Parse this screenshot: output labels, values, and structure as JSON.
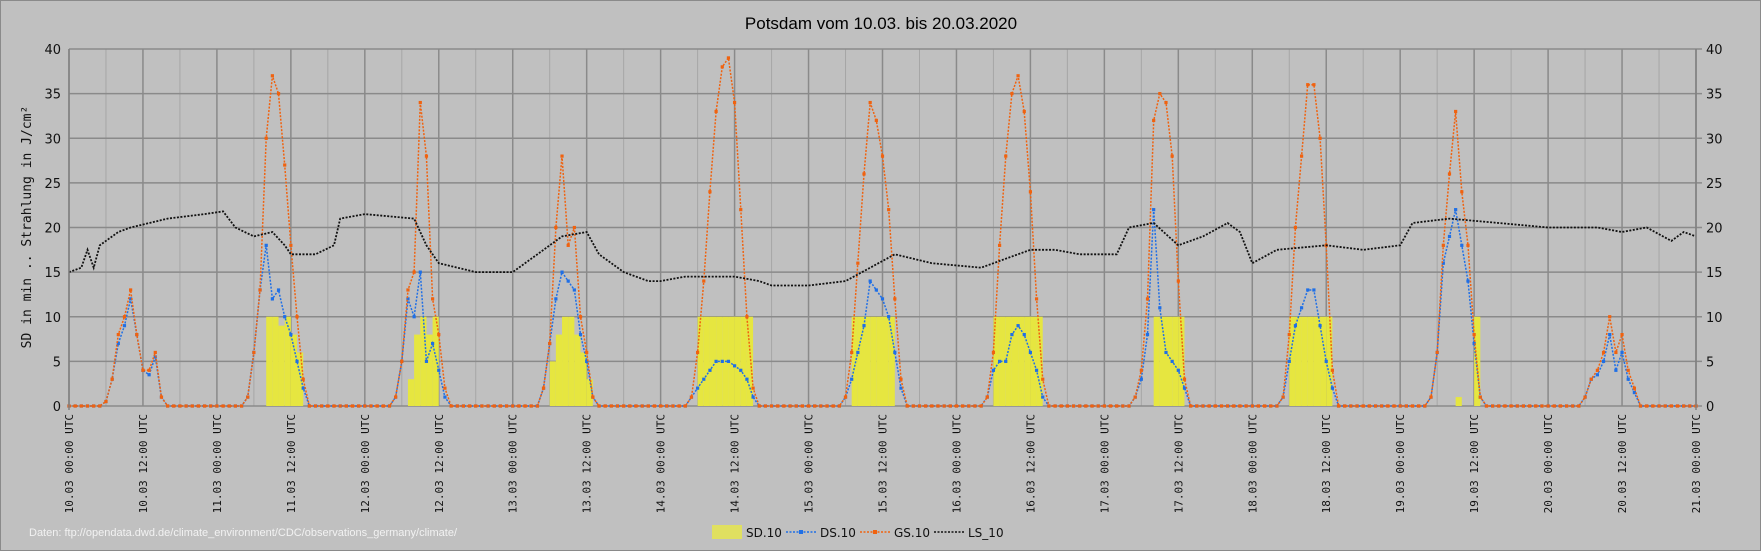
{
  "chart_data": {
    "type": "line",
    "title": "Potsdam vom 10.03. bis 20.03.2020",
    "ylabel": "SD in min .. Strahlung in J/cm²",
    "ylim": [
      0,
      40
    ],
    "y_ticks": [
      "0",
      "5",
      "10",
      "15",
      "20",
      "25",
      "30",
      "35",
      "40"
    ],
    "x_unit": "hours since 10.03 00:00 UTC",
    "xlim": [
      0,
      264
    ],
    "x_tick_labels": [
      "10.03  00:00 UTC",
      "10.03  12:00 UTC",
      "11.03  00:00 UTC",
      "11.03  12:00 UTC",
      "12.03  00:00 UTC",
      "12.03  12:00 UTC",
      "13.03  00:00 UTC",
      "13.03  12:00 UTC",
      "14.03  00:00 UTC",
      "14.03  12:00 UTC",
      "15.03  00:00 UTC",
      "15.03  12:00 UTC",
      "16.03  00:00 UTC",
      "16.03  12:00 UTC",
      "17.03  00:00 UTC",
      "17.03  12:00 UTC",
      "18.03  00:00 UTC",
      "18.03  12:00 UTC",
      "19.03  00:00 UTC",
      "19.03  12:00 UTC",
      "20.03  00:00 UTC",
      "20.03  12:00 UTC",
      "21.03  00:00 UTC"
    ],
    "grid": true,
    "legend_position": "bottom",
    "source_note": "Daten: ftp://opendata.dwd.de/climate_environment/CDC/observations_germany/climate/",
    "series": [
      {
        "name": "SD.10",
        "kind": "bar",
        "color": "#e6e640",
        "hourly_by_day": [
          [
            0,
            0,
            0,
            0,
            0,
            0,
            0,
            0,
            0,
            0,
            0,
            0,
            0,
            0,
            0,
            0,
            0,
            0,
            0,
            0,
            0,
            0,
            0,
            0
          ],
          [
            0,
            0,
            0,
            0,
            0,
            0,
            0,
            0,
            10,
            10,
            9,
            10,
            8,
            6,
            0,
            0,
            0,
            0,
            0,
            0,
            0,
            0,
            0,
            0
          ],
          [
            0,
            0,
            0,
            0,
            0,
            0,
            0,
            3,
            8,
            10,
            8,
            10,
            0,
            0,
            0,
            0,
            0,
            0,
            0,
            0,
            0,
            0,
            0,
            0
          ],
          [
            0,
            0,
            0,
            0,
            0,
            0,
            5,
            8,
            10,
            10,
            8,
            6,
            3,
            0,
            0,
            0,
            0,
            0,
            0,
            0,
            0,
            0,
            0,
            0
          ],
          [
            0,
            0,
            0,
            0,
            0,
            0,
            10,
            10,
            10,
            10,
            10,
            10,
            10,
            10,
            10,
            0,
            0,
            0,
            0,
            0,
            0,
            0,
            0,
            0
          ],
          [
            0,
            0,
            0,
            0,
            0,
            0,
            0,
            10,
            10,
            10,
            10,
            10,
            10,
            10,
            0,
            0,
            0,
            0,
            0,
            0,
            0,
            0,
            0,
            0
          ],
          [
            0,
            0,
            0,
            0,
            0,
            0,
            10,
            10,
            10,
            10,
            10,
            10,
            10,
            10,
            0,
            0,
            0,
            0,
            0,
            0,
            0,
            0,
            0,
            0
          ],
          [
            0,
            0,
            0,
            0,
            0,
            0,
            0,
            0,
            10,
            10,
            10,
            10,
            10,
            0,
            0,
            0,
            0,
            0,
            0,
            0,
            0,
            0,
            0,
            0
          ],
          [
            0,
            0,
            0,
            0,
            0,
            0,
            10,
            10,
            10,
            10,
            10,
            10,
            10,
            0,
            0,
            0,
            0,
            0,
            0,
            0,
            0,
            0,
            0,
            0
          ],
          [
            0,
            0,
            0,
            0,
            0,
            0,
            0,
            0,
            0,
            1,
            0,
            0,
            10,
            0,
            0,
            0,
            0,
            0,
            0,
            0,
            0,
            0,
            0,
            0
          ],
          [
            0,
            0,
            0,
            0,
            0,
            0,
            0,
            0,
            0,
            0,
            0,
            0,
            0,
            0,
            0,
            0,
            0,
            0,
            0,
            0,
            0,
            0,
            0,
            0
          ]
        ]
      },
      {
        "name": "DS.10",
        "kind": "line",
        "color": "#1f6fe6",
        "hourly_by_day": [
          [
            0,
            0,
            0,
            0,
            0,
            0,
            0.5,
            3,
            7,
            9,
            12,
            8,
            4,
            3.5,
            5.5,
            1,
            0,
            0,
            0,
            0,
            0,
            0,
            0,
            0
          ],
          [
            0,
            0,
            0,
            0,
            0,
            1,
            6,
            13,
            18,
            12,
            13,
            10,
            8,
            5,
            2,
            0,
            0,
            0,
            0,
            0,
            0,
            0,
            0,
            0
          ],
          [
            0,
            0,
            0,
            0,
            0,
            1,
            5,
            12,
            10,
            15,
            5,
            7,
            4,
            1,
            0,
            0,
            0,
            0,
            0,
            0,
            0,
            0,
            0,
            0
          ],
          [
            0,
            0,
            0,
            0,
            0,
            2,
            7,
            12,
            15,
            14,
            13,
            8,
            5,
            1,
            0,
            0,
            0,
            0,
            0,
            0,
            0,
            0,
            0,
            0
          ],
          [
            0,
            0,
            0,
            0,
            0,
            1,
            2,
            3,
            4,
            5,
            5,
            5,
            4.5,
            4,
            3,
            1,
            0,
            0,
            0,
            0,
            0,
            0,
            0,
            0
          ],
          [
            0,
            0,
            0,
            0,
            0,
            0,
            1,
            3,
            6,
            9,
            14,
            13,
            12,
            10,
            6,
            2,
            0,
            0,
            0,
            0,
            0,
            0,
            0,
            0
          ],
          [
            0,
            0,
            0,
            0,
            0,
            1,
            4,
            5,
            5,
            8,
            9,
            8,
            6,
            4,
            1,
            0,
            0,
            0,
            0,
            0,
            0,
            0,
            0,
            0
          ],
          [
            0,
            0,
            0,
            0,
            0,
            1,
            3,
            8,
            22,
            11,
            6,
            5,
            4,
            2,
            0,
            0,
            0,
            0,
            0,
            0,
            0,
            0,
            0,
            0
          ],
          [
            0,
            0,
            0,
            0,
            0,
            1,
            5,
            9,
            11,
            13,
            13,
            9,
            5,
            2,
            0,
            0,
            0,
            0,
            0,
            0,
            0,
            0,
            0,
            0
          ],
          [
            0,
            0,
            0,
            0,
            0,
            1,
            6,
            16,
            19,
            22,
            18,
            14,
            7,
            1,
            0,
            0,
            0,
            0,
            0,
            0,
            0,
            0,
            0,
            0
          ],
          [
            0,
            0,
            0,
            0,
            0,
            0,
            1,
            3,
            3.5,
            5,
            8,
            4,
            6,
            3,
            1.5,
            0,
            0,
            0,
            0,
            0,
            0,
            0,
            0,
            0
          ]
        ]
      },
      {
        "name": "GS.10",
        "kind": "line",
        "color": "#f0620f",
        "hourly_by_day": [
          [
            0,
            0,
            0,
            0,
            0,
            0,
            0.5,
            3,
            8,
            10,
            13,
            8,
            4,
            4,
            6,
            1,
            0,
            0,
            0,
            0,
            0,
            0,
            0,
            0
          ],
          [
            0,
            0,
            0,
            0,
            0,
            1,
            6,
            13,
            30,
            37,
            35,
            27,
            18,
            10,
            3,
            0,
            0,
            0,
            0,
            0,
            0,
            0,
            0,
            0
          ],
          [
            0,
            0,
            0,
            0,
            0,
            1,
            5,
            13,
            15,
            34,
            28,
            12,
            8,
            2,
            0,
            0,
            0,
            0,
            0,
            0,
            0,
            0,
            0,
            0
          ],
          [
            0,
            0,
            0,
            0,
            0,
            2,
            7,
            20,
            28,
            18,
            20,
            10,
            6,
            1,
            0,
            0,
            0,
            0,
            0,
            0,
            0,
            0,
            0,
            0
          ],
          [
            0,
            0,
            0,
            0,
            0,
            1,
            6,
            14,
            24,
            33,
            38,
            39,
            34,
            22,
            10,
            2,
            0,
            0,
            0,
            0,
            0,
            0,
            0,
            0
          ],
          [
            0,
            0,
            0,
            0,
            0,
            0,
            1,
            6,
            16,
            26,
            34,
            32,
            28,
            22,
            12,
            3,
            0,
            0,
            0,
            0,
            0,
            0,
            0,
            0
          ],
          [
            0,
            0,
            0,
            0,
            0,
            1,
            6,
            18,
            28,
            35,
            37,
            33,
            24,
            12,
            3,
            0,
            0,
            0,
            0,
            0,
            0,
            0,
            0,
            0
          ],
          [
            0,
            0,
            0,
            0,
            0,
            1,
            4,
            12,
            32,
            35,
            34,
            28,
            14,
            3,
            0,
            0,
            0,
            0,
            0,
            0,
            0,
            0,
            0,
            0
          ],
          [
            0,
            0,
            0,
            0,
            0,
            1,
            8,
            20,
            28,
            36,
            36,
            30,
            18,
            4,
            0,
            0,
            0,
            0,
            0,
            0,
            0,
            0,
            0,
            0
          ],
          [
            0,
            0,
            0,
            0,
            0,
            1,
            6,
            18,
            26,
            33,
            24,
            18,
            8,
            1,
            0,
            0,
            0,
            0,
            0,
            0,
            0,
            0,
            0,
            0
          ],
          [
            0,
            0,
            0,
            0,
            0,
            0,
            1,
            3,
            4,
            6,
            10,
            6,
            8,
            4,
            2,
            0,
            0,
            0,
            0,
            0,
            0,
            0,
            0,
            0
          ]
        ]
      },
      {
        "name": "LS_10",
        "kind": "line",
        "color": "#111111",
        "points": [
          [
            0,
            15
          ],
          [
            2,
            15.5
          ],
          [
            3,
            17.5
          ],
          [
            4,
            15.5
          ],
          [
            5,
            18
          ],
          [
            8,
            19.5
          ],
          [
            10,
            20
          ],
          [
            16,
            21
          ],
          [
            22,
            21.5
          ],
          [
            25,
            21.8
          ],
          [
            27,
            20
          ],
          [
            30,
            19
          ],
          [
            33,
            19.5
          ],
          [
            35,
            18
          ],
          [
            36,
            17
          ],
          [
            40,
            17
          ],
          [
            43,
            18
          ],
          [
            44,
            21
          ],
          [
            48,
            21.5
          ],
          [
            56,
            21
          ],
          [
            58,
            18
          ],
          [
            60,
            16
          ],
          [
            66,
            15
          ],
          [
            72,
            15
          ],
          [
            76,
            17
          ],
          [
            80,
            19
          ],
          [
            84,
            19.5
          ],
          [
            86,
            17
          ],
          [
            90,
            15
          ],
          [
            94,
            14
          ],
          [
            96,
            14
          ],
          [
            100,
            14.5
          ],
          [
            108,
            14.5
          ],
          [
            112,
            14
          ],
          [
            114,
            13.5
          ],
          [
            120,
            13.5
          ],
          [
            126,
            14
          ],
          [
            130,
            15.5
          ],
          [
            134,
            17
          ],
          [
            140,
            16
          ],
          [
            148,
            15.5
          ],
          [
            152,
            16.5
          ],
          [
            156,
            17.5
          ],
          [
            160,
            17.5
          ],
          [
            164,
            17
          ],
          [
            170,
            17
          ],
          [
            172,
            20
          ],
          [
            176,
            20.5
          ],
          [
            180,
            18
          ],
          [
            184,
            19
          ],
          [
            188,
            20.5
          ],
          [
            190,
            19.5
          ],
          [
            192,
            16
          ],
          [
            196,
            17.5
          ],
          [
            204,
            18
          ],
          [
            210,
            17.5
          ],
          [
            216,
            18
          ],
          [
            218,
            20.5
          ],
          [
            224,
            21
          ],
          [
            232,
            20.5
          ],
          [
            240,
            20
          ],
          [
            248,
            20
          ],
          [
            252,
            19.5
          ],
          [
            256,
            20
          ],
          [
            260,
            18.5
          ],
          [
            262,
            19.5
          ],
          [
            264,
            19
          ]
        ]
      }
    ]
  }
}
